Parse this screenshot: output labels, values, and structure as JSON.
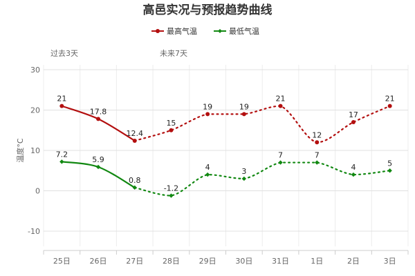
{
  "chart_data": {
    "type": "line",
    "title": "高邑实况与预报趋势曲线",
    "ylabel": "温度°C",
    "xlabel": "",
    "ylim": [
      -10,
      30
    ],
    "yticks": [
      -10,
      0,
      10,
      20,
      30
    ],
    "categories": [
      "25日",
      "26日",
      "27日",
      "28日",
      "29日",
      "30日",
      "31日",
      "1日",
      "2日",
      "3日"
    ],
    "sections": [
      "过去3天",
      "未来7天"
    ],
    "grid": true,
    "legend_position": "top-center",
    "series": [
      {
        "name": "最高气温",
        "color": "#b30f0f",
        "values": [
          21,
          17.8,
          12.4,
          15,
          19,
          19,
          21,
          12,
          17,
          21
        ],
        "labels": [
          "21",
          "17.8",
          "12.4",
          "15",
          "19",
          "19",
          "21",
          "12",
          "17",
          "21"
        ]
      },
      {
        "name": "最低气温",
        "color": "#118811",
        "values": [
          7.2,
          5.9,
          0.8,
          -1.2,
          4,
          3,
          7,
          7,
          4,
          5
        ],
        "labels": [
          "7.2",
          "5.9",
          "0.8",
          "-1.2",
          "4",
          "3",
          "7",
          "7",
          "4",
          "5"
        ]
      }
    ]
  }
}
